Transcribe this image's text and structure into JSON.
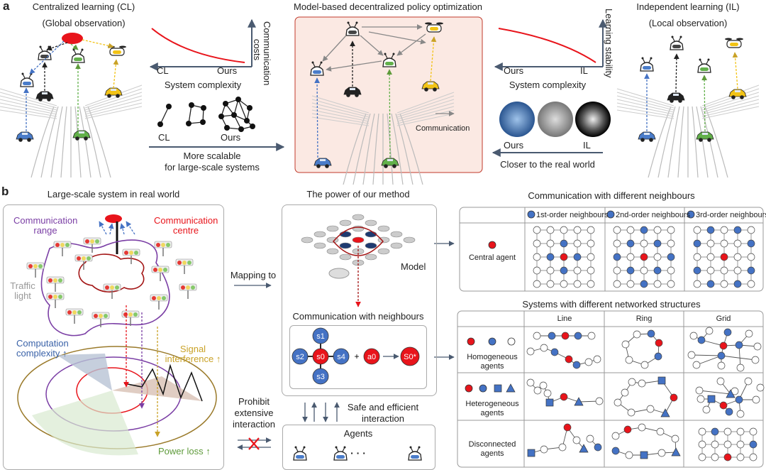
{
  "panel_a": {
    "label": "a",
    "centralized": {
      "title": "Centralized learning (CL)",
      "subtitle": "(Global observation)"
    },
    "comm_cost_chart": {
      "ylabel": "Communication costs",
      "xlabel": "System complexity",
      "left_tick": "CL",
      "right_tick": "Ours",
      "trend": "decreasing"
    },
    "scalability": {
      "left": "CL",
      "right": "Ours",
      "caption_line1": "More scalable",
      "caption_line2": "for large-scale systems"
    },
    "decentralized": {
      "title": "Model-based decentralized policy optimization",
      "communication_label": "Communication"
    },
    "stability_chart": {
      "ylabel": "Learning stability",
      "xlabel": "System complexity",
      "left_tick": "Ours",
      "right_tick": "IL",
      "trend": "decreasing"
    },
    "realism": {
      "left": "Ours",
      "right": "IL",
      "caption": "Closer to the real world"
    },
    "independent": {
      "title": "Independent learning (IL)",
      "subtitle": "(Local observation)"
    }
  },
  "panel_b": {
    "label": "b",
    "real_world": {
      "title": "Large-scale system in real world",
      "comm_range": "Communication range",
      "comm_centre": "Communication centre",
      "traffic_light": "Traffic light",
      "computation": "Computation complexity ↑",
      "signal": "Signal interference ↑",
      "power": "Power loss ↑"
    },
    "mapping_to": "Mapping to",
    "prohibit": "Prohibit extensive interaction",
    "method": {
      "title": "The power of our method",
      "model": "Model",
      "comm_neighbours": "Communication with neighbours",
      "nodes": {
        "s1": "s1",
        "s2": "s2",
        "s0": "s0",
        "s4": "s4",
        "s3": "s3",
        "a0": "a0",
        "s0_next": "S0*"
      },
      "safe": "Safe and efficient interaction",
      "agents": "Agents",
      "ellipsis": "· · ·"
    },
    "neighbours_table": {
      "title": "Communication with different neighbours",
      "row_label": "Central agent",
      "columns": [
        "1st-order neighbours",
        "2nd-order neighbours",
        "3rd-order neighbours"
      ],
      "orders": [
        1,
        2,
        3
      ]
    },
    "structures_table": {
      "title": "Systems with different networked structures",
      "columns": [
        "Line",
        "Ring",
        "Grid"
      ],
      "rows": [
        "Homogeneous agents",
        "Heterogeneous agents",
        "Disconnected agents"
      ]
    }
  },
  "colors": {
    "red": "#e8141b",
    "blue": "#4472c4",
    "purple": "#7b3fa5",
    "gold": "#c9a227",
    "green": "#5e9a3a",
    "axis": "#4a5a70",
    "pink_bg": "#fbe9e3"
  }
}
